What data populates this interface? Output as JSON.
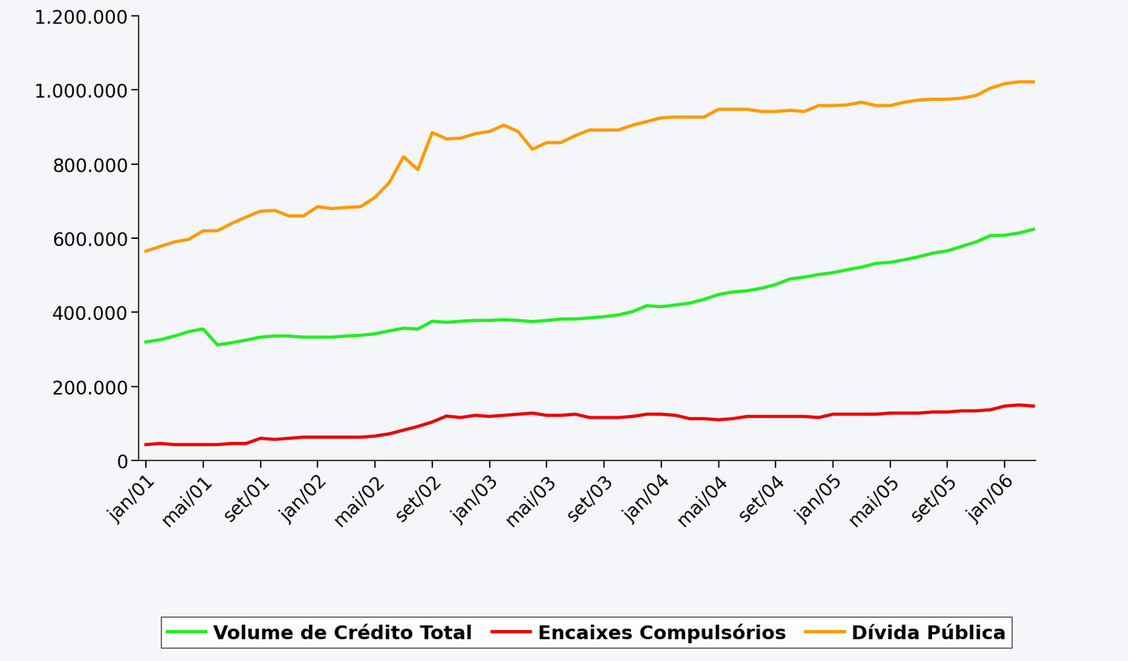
{
  "chart_data": {
    "type": "line",
    "categories": [
      "jan/01",
      null,
      null,
      null,
      "mai/01",
      null,
      null,
      null,
      "set/01",
      null,
      null,
      null,
      "jan/02",
      null,
      null,
      null,
      "mai/02",
      null,
      null,
      null,
      "set/02",
      null,
      null,
      null,
      "jan/03",
      null,
      null,
      null,
      "mai/03",
      null,
      null,
      null,
      "set/03",
      null,
      null,
      null,
      "jan/04",
      null,
      null,
      null,
      "mai/04",
      null,
      null,
      null,
      "set/04",
      null,
      null,
      null,
      "jan/05",
      null,
      null,
      null,
      "mai/05",
      null,
      null,
      null,
      "set/05",
      null,
      null,
      null,
      "jan/06",
      null,
      null
    ],
    "series": [
      {
        "name": "Volume de Crédito Total",
        "color": "#22ee22",
        "values": [
          320000,
          326000,
          336000,
          348000,
          355000,
          312000,
          318000,
          325000,
          333000,
          336000,
          336000,
          333000,
          333000,
          333000,
          336000,
          338000,
          342000,
          350000,
          357000,
          355000,
          376000,
          373000,
          376000,
          378000,
          378000,
          380000,
          378000,
          375000,
          378000,
          382000,
          382000,
          385000,
          388000,
          393000,
          402000,
          418000,
          415000,
          420000,
          425000,
          435000,
          448000,
          455000,
          458000,
          465000,
          475000,
          490000,
          495000,
          502000,
          507000,
          515000,
          522000,
          532000,
          535000,
          542000,
          550000,
          560000,
          566000,
          578000,
          590000,
          607000,
          608000,
          614000,
          624000
        ]
      },
      {
        "name": "Encaixes Compulsórios",
        "color": "#ee0000",
        "values": [
          43000,
          46000,
          43000,
          43000,
          43000,
          43000,
          46000,
          46000,
          60000,
          57000,
          60000,
          63000,
          63000,
          63000,
          63000,
          63000,
          66000,
          72000,
          82000,
          92000,
          104000,
          120000,
          116000,
          122000,
          119000,
          122000,
          125000,
          128000,
          122000,
          122000,
          125000,
          116000,
          116000,
          116000,
          119000,
          125000,
          125000,
          122000,
          113000,
          113000,
          110000,
          113000,
          119000,
          119000,
          119000,
          119000,
          119000,
          116000,
          125000,
          125000,
          125000,
          125000,
          128000,
          128000,
          128000,
          131000,
          131000,
          134000,
          134000,
          137000,
          147000,
          150000,
          147000
        ]
      },
      {
        "name": "Dívida Pública",
        "color": "#ff9900",
        "values": [
          565000,
          578000,
          590000,
          597000,
          620000,
          620000,
          640000,
          657000,
          673000,
          675000,
          660000,
          660000,
          685000,
          680000,
          683000,
          685000,
          710000,
          750000,
          820000,
          785000,
          885000,
          868000,
          870000,
          882000,
          888000,
          905000,
          888000,
          840000,
          858000,
          858000,
          877000,
          892000,
          892000,
          892000,
          905000,
          915000,
          925000,
          927000,
          927000,
          927000,
          948000,
          948000,
          948000,
          942000,
          942000,
          945000,
          942000,
          958000,
          958000,
          960000,
          967000,
          958000,
          958000,
          967000,
          973000,
          975000,
          975000,
          978000,
          985000,
          1005000,
          1017000,
          1022000,
          1022000
        ]
      }
    ],
    "ylim": [
      0,
      1200000
    ],
    "yticks": [
      0,
      {
        "value": 200000,
        "label": "200.000"
      },
      {
        "value": 400000,
        "label": "400.000"
      },
      {
        "value": 600000,
        "label": "600.000"
      },
      {
        "value": 800000,
        "label": "800.000"
      },
      {
        "value": 1000000,
        "label": "1.000.000"
      },
      {
        "value": 1200000,
        "label": "1.200.000"
      }
    ],
    "grid": false,
    "legend": "lower center"
  }
}
